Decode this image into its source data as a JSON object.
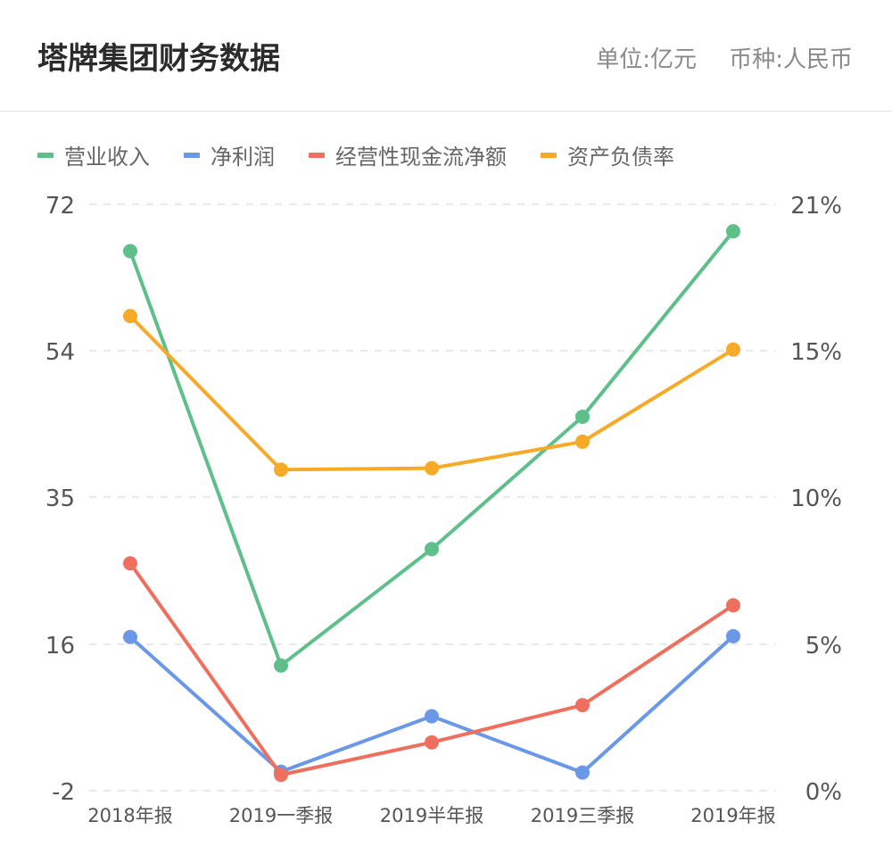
{
  "header": {
    "title": "塔牌集团财务数据",
    "unit": "单位:亿元",
    "currency": "币种:人民币"
  },
  "chart_data": {
    "type": "line",
    "categories": [
      "2018年报",
      "2019一季报",
      "2019半年报",
      "2019三季报",
      "2019年报"
    ],
    "y_left_ticks": [
      "72",
      "54",
      "35",
      "16",
      "-2"
    ],
    "y_right_ticks": [
      "21%",
      "15%",
      "10%",
      "5%",
      "0%"
    ],
    "ylim_left": [
      -2,
      72
    ],
    "ylim_right": [
      0,
      21
    ],
    "grid": "dashed horizontal",
    "legend_position": "top-left",
    "series": [
      {
        "name": "营业收入",
        "axis": "left",
        "color": "#5fbf8a",
        "values": [
          66.1,
          13.8,
          28.5,
          45.2,
          68.6
        ]
      },
      {
        "name": "净利润",
        "axis": "left",
        "color": "#6a97e6",
        "values": [
          17.4,
          0.4,
          7.4,
          0.3,
          17.5
        ]
      },
      {
        "name": "经营性现金流净额",
        "axis": "left",
        "color": "#ef6f5f",
        "values": [
          26.7,
          0.0,
          4.1,
          8.8,
          21.4
        ]
      },
      {
        "name": "资产负债率",
        "axis": "right",
        "color": "#f7aa27",
        "values": [
          17.0,
          11.5,
          11.55,
          12.5,
          15.8
        ]
      }
    ]
  }
}
